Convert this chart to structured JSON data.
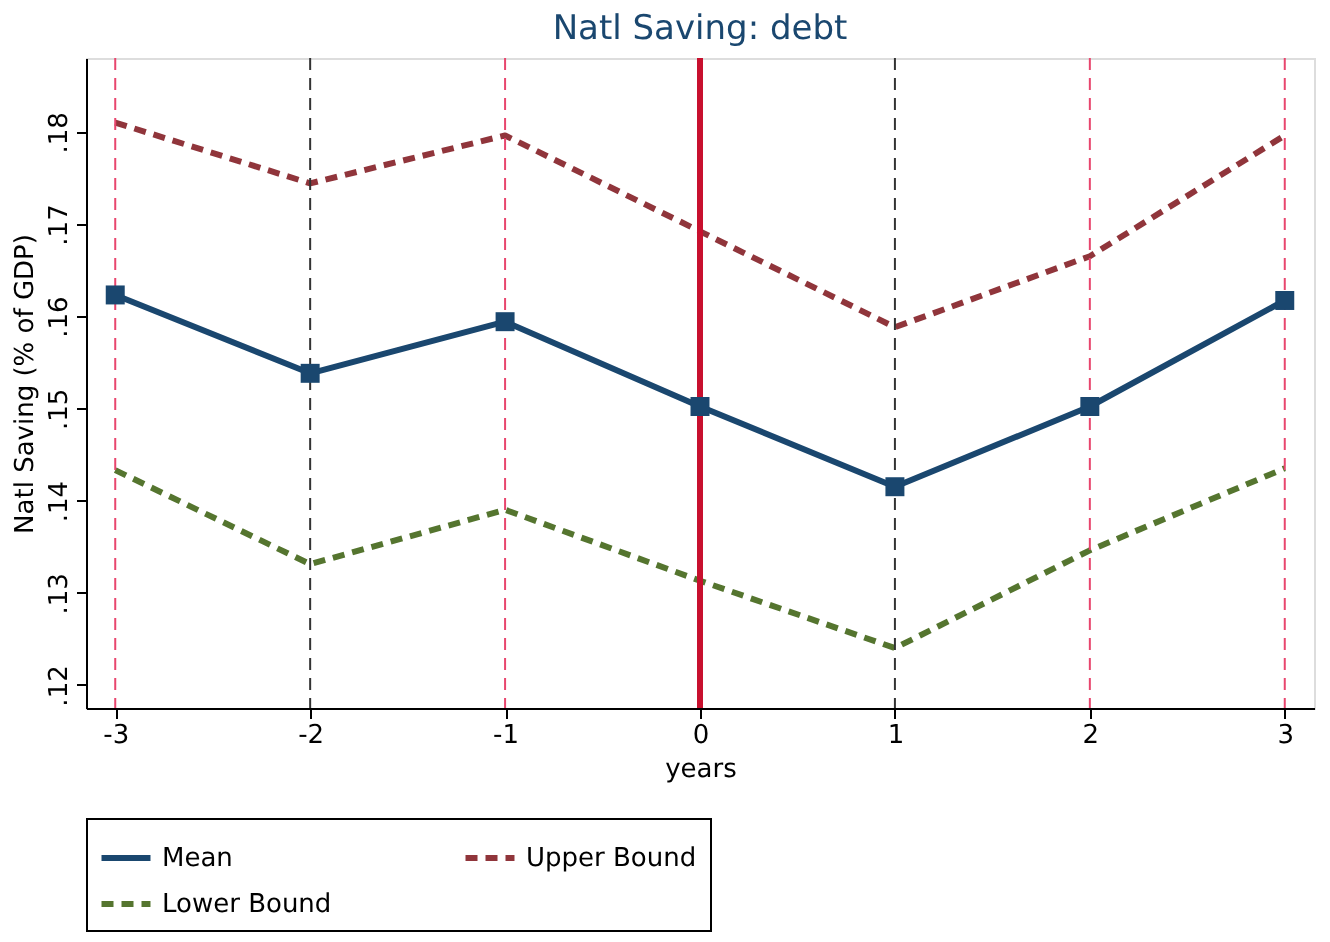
{
  "chart_data": {
    "type": "line",
    "title": "Natl Saving: debt",
    "xlabel": "years",
    "ylabel": "Natl Saving (% of GDP)",
    "x": [
      -3,
      -2,
      -1,
      0,
      1,
      2,
      3
    ],
    "series": [
      {
        "name": "Mean",
        "color": "#1a476f",
        "marker": "square",
        "line_style": "solid",
        "values": [
          0.1623,
          0.1538,
          0.1594,
          0.1502,
          0.1415,
          0.1502,
          0.1617
        ]
      },
      {
        "name": "Upper Bound",
        "color": "#90353b",
        "marker": "none",
        "line_style": "dashed",
        "values": [
          0.181,
          0.1744,
          0.1796,
          0.1692,
          0.1588,
          0.1665,
          0.1796
        ]
      },
      {
        "name": "Lower Bound",
        "color": "#55752f",
        "marker": "none",
        "line_style": "dashed",
        "values": [
          0.1433,
          0.1331,
          0.139,
          0.1313,
          0.124,
          0.1346,
          0.1435
        ]
      }
    ],
    "xlim": [
      -3.15,
      3.15
    ],
    "xticks": [
      -3,
      -2,
      -1,
      0,
      1,
      2,
      3
    ],
    "ylim": [
      0.1175,
      0.188
    ],
    "yticks": [
      {
        "value": 0.12,
        "label": ".12"
      },
      {
        "value": 0.13,
        "label": ".13"
      },
      {
        "value": 0.14,
        "label": ".14"
      },
      {
        "value": 0.15,
        "label": ".15"
      },
      {
        "value": 0.16,
        "label": ".16"
      },
      {
        "value": 0.17,
        "label": ".17"
      },
      {
        "value": 0.18,
        "label": ".18"
      }
    ],
    "ref_lines": [
      {
        "axis": "x",
        "value": -3,
        "color": "#e8466e",
        "line_style": "dashed"
      },
      {
        "axis": "x",
        "value": -2,
        "color": "#333333",
        "line_style": "dashed"
      },
      {
        "axis": "x",
        "value": -1,
        "color": "#e8466e",
        "line_style": "dashed"
      },
      {
        "axis": "x",
        "value": 0,
        "color": "#c8102e",
        "line_style": "solid"
      },
      {
        "axis": "x",
        "value": 1,
        "color": "#333333",
        "line_style": "dashed"
      },
      {
        "axis": "x",
        "value": 2,
        "color": "#e8466e",
        "line_style": "dashed"
      },
      {
        "axis": "x",
        "value": 3,
        "color": "#e8466e",
        "line_style": "dashed"
      }
    ],
    "grid": false,
    "legend": "bottom"
  }
}
